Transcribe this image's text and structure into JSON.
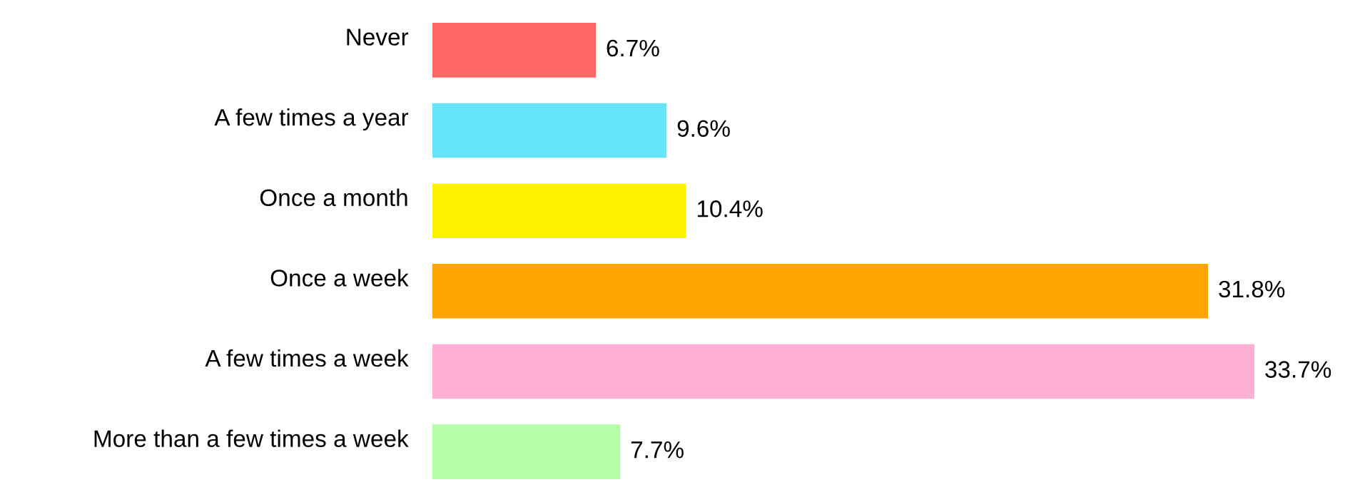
{
  "chart_data": {
    "type": "bar",
    "orientation": "horizontal",
    "categories": [
      "Never",
      "A few times a year",
      "Once a month",
      "Once a week",
      "A few times a week",
      "More than a few times a week"
    ],
    "values": [
      6.7,
      9.6,
      10.4,
      31.8,
      33.7,
      7.7
    ],
    "colors": [
      "#ff6666",
      "#66e5f9",
      "#fff200",
      "#ffa500",
      "#ffb0d6",
      "#b5ffa8"
    ],
    "value_labels": [
      "6.7%",
      "9.6%",
      "10.4%",
      "31.8%",
      "33.7%",
      "7.7%"
    ],
    "grid": false,
    "legend": false
  }
}
